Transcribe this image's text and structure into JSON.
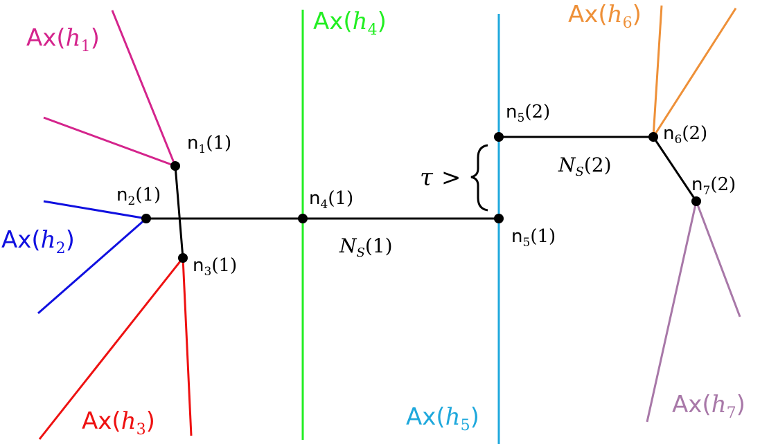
{
  "colors": {
    "h1": "#d4248c",
    "h2": "#1010e0",
    "h3": "#ee1111",
    "h4": "#22ee22",
    "h5": "#1ea8dc",
    "h6": "#ee9038",
    "h7": "#a878a8",
    "tree": "#000000"
  },
  "axes": {
    "h1": {
      "prefix": "Ax(",
      "var": "h",
      "sub": "1",
      "suffix": ")"
    },
    "h2": {
      "prefix": "Ax(",
      "var": "h",
      "sub": "2",
      "suffix": ")"
    },
    "h3": {
      "prefix": "Ax(",
      "var": "h",
      "sub": "3",
      "suffix": ")"
    },
    "h4": {
      "prefix": "Ax(",
      "var": "h",
      "sub": "4",
      "suffix": ")"
    },
    "h5": {
      "prefix": "Ax(",
      "var": "h",
      "sub": "5",
      "suffix": ")"
    },
    "h6": {
      "prefix": "Ax(",
      "var": "h",
      "sub": "6",
      "suffix": ")"
    },
    "h7": {
      "prefix": "Ax(",
      "var": "h",
      "sub": "7",
      "suffix": ")"
    }
  },
  "nodes": {
    "n1": {
      "base": "n",
      "sub": "1",
      "arg": "(1)"
    },
    "n2": {
      "base": "n",
      "sub": "2",
      "arg": "(1)"
    },
    "n3": {
      "base": "n",
      "sub": "3",
      "arg": "(1)"
    },
    "n4": {
      "base": "n",
      "sub": "4",
      "arg": "(1)"
    },
    "n5a": {
      "base": "n",
      "sub": "5",
      "arg": "(1)"
    },
    "n5b": {
      "base": "n",
      "sub": "5",
      "arg": "(2)"
    },
    "n6": {
      "base": "n",
      "sub": "6",
      "arg": "(2)"
    },
    "n7": {
      "base": "n",
      "sub": "7",
      "arg": "(2)"
    }
  },
  "edges": {
    "ns1": {
      "var": "N",
      "sub": "S",
      "arg": "(1)"
    },
    "ns2": {
      "var": "N",
      "sub": "S",
      "arg": "(2)"
    }
  },
  "tau": {
    "symbol": "τ",
    "relation": ">",
    "brace": "{"
  }
}
